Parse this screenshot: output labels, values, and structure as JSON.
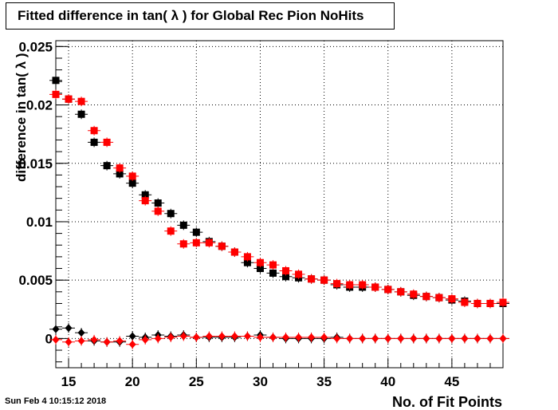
{
  "title": "Fitted difference in tan( λ ) for Global Rec Pion NoHits",
  "timestamp": "Sun Feb  4 10:15:12 2018",
  "chart_data": {
    "type": "scatter",
    "xlabel": "No. of Fit Points",
    "ylabel": "difference in tan( λ )",
    "xlim": [
      14,
      49
    ],
    "ylim": [
      -0.0025,
      0.0255
    ],
    "grid": true,
    "x_ticks": [
      {
        "value": 15,
        "label": "15"
      },
      {
        "value": 20,
        "label": "20"
      },
      {
        "value": 25,
        "label": "25"
      },
      {
        "value": 30,
        "label": "30"
      },
      {
        "value": 35,
        "label": "35"
      },
      {
        "value": 40,
        "label": "40"
      },
      {
        "value": 45,
        "label": "45"
      }
    ],
    "y_ticks": [
      {
        "value": 0,
        "label": "0"
      },
      {
        "value": 0.005,
        "label": "0.005"
      },
      {
        "value": 0.01,
        "label": "0.01"
      },
      {
        "value": 0.015,
        "label": "0.015"
      },
      {
        "value": 0.02,
        "label": "0.02"
      },
      {
        "value": 0.025,
        "label": "0.025"
      }
    ],
    "x": [
      14,
      15,
      16,
      17,
      18,
      19,
      20,
      21,
      22,
      23,
      24,
      25,
      26,
      27,
      28,
      29,
      30,
      31,
      32,
      33,
      34,
      35,
      36,
      37,
      38,
      39,
      40,
      41,
      42,
      43,
      44,
      45,
      46,
      47,
      48,
      49
    ],
    "series": [
      {
        "marker": "square",
        "color": "#000000",
        "values": [
          0.0221,
          0.0205,
          0.0192,
          0.0168,
          0.0148,
          0.0141,
          0.0133,
          0.0123,
          0.0116,
          0.0107,
          0.0097,
          0.0091,
          0.0083,
          0.0079,
          0.0074,
          0.0065,
          0.006,
          0.0056,
          0.0053,
          0.0052,
          0.0051,
          0.005,
          0.0046,
          0.0044,
          0.0044,
          0.0044,
          0.0042,
          0.004,
          0.0037,
          0.0036,
          0.0035,
          0.0033,
          0.0032,
          0.003,
          0.003,
          0.003
        ]
      },
      {
        "marker": "square",
        "color": "#ff0000",
        "values": [
          0.0209,
          0.0205,
          0.0203,
          0.0178,
          0.0168,
          0.0146,
          0.0139,
          0.0118,
          0.0109,
          0.0092,
          0.0081,
          0.0082,
          0.0082,
          0.0079,
          0.0074,
          0.007,
          0.0065,
          0.0063,
          0.0058,
          0.0055,
          0.0051,
          0.005,
          0.0047,
          0.0046,
          0.0046,
          0.0044,
          0.0042,
          0.004,
          0.0038,
          0.0036,
          0.0035,
          0.0034,
          0.0031,
          0.003,
          0.003,
          0.0031
        ]
      },
      {
        "marker": "diamond",
        "color": "#000000",
        "values": [
          0.0008,
          0.0009,
          0.0005,
          -0.0002,
          -0.0003,
          -0.0003,
          0.0002,
          0.0001,
          0.0003,
          0.0002,
          0.0003,
          0.0001,
          0.0001,
          0.0001,
          0.0001,
          0.0002,
          0.0003,
          0.0001,
          0.0,
          0.0,
          0.0,
          0.0,
          0.0001,
          0.0,
          0.0,
          0.0,
          0.0,
          0.0,
          0.0,
          0.0,
          0.0,
          0.0,
          0.0,
          0.0,
          0.0,
          0.0
        ]
      },
      {
        "marker": "diamond",
        "color": "#ff0000",
        "values": [
          -0.0001,
          -0.0003,
          -0.0002,
          -0.0001,
          -0.0003,
          -0.0002,
          -0.0005,
          -0.0001,
          0.0,
          0.0001,
          0.0002,
          0.0001,
          0.0002,
          0.0002,
          0.0002,
          0.0002,
          0.0001,
          0.0001,
          0.0001,
          0.0001,
          0.0001,
          0.0001,
          0.0,
          0.0,
          0.0,
          0.0,
          0.0,
          0.0,
          0.0,
          0.0,
          0.0,
          0.0,
          0.0,
          0.0,
          0.0,
          0.0
        ]
      }
    ]
  }
}
